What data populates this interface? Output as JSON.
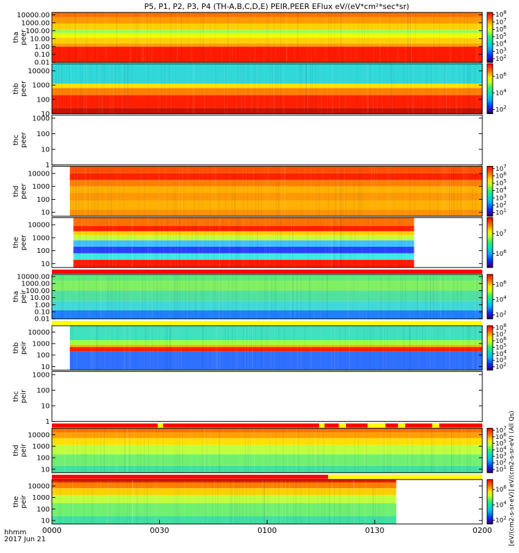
{
  "chart_data": {
    "type": "heatmap",
    "title": "P5, P1, P2, P3, P4 (TH-A,B,C,D,E) PEIR,PEER EFlux eV/(eV*cm²*sec*sr)",
    "x_axis_label_lines": [
      "hhmm",
      "2017 Jun 21"
    ],
    "x_ticks": [
      "0000",
      "0030",
      "0100",
      "0130",
      "0200"
    ],
    "x_range_minutes": [
      0,
      120
    ],
    "colorbar_label": "[eV/(cm2-s-sr-eV)] eV/(cm2-s-sr-eV) (All Qs)",
    "panels": [
      {
        "name": "tha peer",
        "ylabel": [
          "tha",
          "peer"
        ],
        "yticks": [
          "10000.00",
          "1000.00",
          "100.00",
          "10.00",
          "1.00",
          "0.10",
          "0.01"
        ],
        "y_log_range": [
          -2,
          4.3
        ],
        "data_coverage_min": [
          0,
          120
        ],
        "bands": [
          [
            -2,
            0,
            "#ff1a00"
          ],
          [
            0,
            0.4,
            "#ffa000"
          ],
          [
            0.4,
            1.1,
            "#ffd000"
          ],
          [
            1.1,
            1.7,
            "#f0ff00"
          ],
          [
            1.7,
            2.2,
            "#a0ff40"
          ],
          [
            2.2,
            2.9,
            "#ffd000"
          ],
          [
            2.9,
            3.7,
            "#ff9a00"
          ],
          [
            3.7,
            4.3,
            "#ff7000"
          ]
        ],
        "cbar_ticks": [
          "10^8",
          "10^7",
          "10^6",
          "10^5",
          "10^4",
          "10^3",
          "10^2"
        ],
        "cbar_range": [
          1.5,
          8.3
        ],
        "has_flag": false
      },
      {
        "name": "thb peer",
        "ylabel": [
          "thb",
          "peer"
        ],
        "yticks": [
          "10000",
          "1000",
          "100",
          "10"
        ],
        "y_log_range": [
          1,
          4.5
        ],
        "data_coverage_min": [
          0,
          120
        ],
        "bands": [
          [
            1,
            1.4,
            "#c81000"
          ],
          [
            1.4,
            2.3,
            "#ff2000"
          ],
          [
            2.3,
            2.8,
            "#ff8000"
          ],
          [
            2.8,
            3.1,
            "#ffe000"
          ],
          [
            3.1,
            4.5,
            "#30d8d8"
          ]
        ],
        "cbar_ticks": [
          "10^6",
          "10^4",
          "10^2"
        ],
        "cbar_range": [
          1.5,
          7.5
        ],
        "has_flag": false
      },
      {
        "name": "thc peer",
        "ylabel": [
          "thc",
          "peer"
        ],
        "yticks": [
          "1000",
          "100",
          "10",
          "1"
        ],
        "y_log_range": [
          0,
          3.2
        ],
        "data_coverage_min": null,
        "bands": [],
        "cbar_ticks": [],
        "cbar_range": null,
        "has_flag": false
      },
      {
        "name": "thd peer",
        "ylabel": [
          "thd",
          "peer"
        ],
        "yticks": [
          "10000",
          "1000",
          "100",
          "10"
        ],
        "y_log_range": [
          0.7,
          4.55
        ],
        "data_coverage_min": [
          5,
          120
        ],
        "bands": [
          [
            0.7,
            1.2,
            "#ff9000"
          ],
          [
            1.2,
            1.9,
            "#ffb000"
          ],
          [
            1.9,
            2.5,
            "#ff9800"
          ],
          [
            2.5,
            3.0,
            "#ffb000"
          ],
          [
            3.0,
            3.5,
            "#ff8000"
          ],
          [
            3.5,
            4.0,
            "#ff2000"
          ],
          [
            4.0,
            4.55,
            "#ff5000"
          ]
        ],
        "cbar_ticks": [
          "10^7",
          "10^6",
          "10^5",
          "10^4",
          "10^3",
          "10^2",
          "10^1"
        ],
        "cbar_range": [
          0.5,
          7.3
        ],
        "has_flag": false
      },
      {
        "name": "the peer",
        "ylabel": [
          "the",
          "peer"
        ],
        "yticks": [
          "10000",
          "1000",
          "100",
          "10"
        ],
        "y_log_range": [
          0.7,
          4.55
        ],
        "data_coverage_min": [
          6,
          101
        ],
        "bands": [
          [
            0.7,
            1.3,
            "#ff1a00"
          ],
          [
            1.3,
            1.8,
            "#40e8e8"
          ],
          [
            1.8,
            2.3,
            "#2a40ff"
          ],
          [
            2.3,
            2.8,
            "#40c0ff"
          ],
          [
            2.8,
            3.2,
            "#c0ff40"
          ],
          [
            3.2,
            3.5,
            "#ffd000"
          ],
          [
            3.5,
            3.9,
            "#ff2000"
          ],
          [
            3.9,
            4.55,
            "#ff7000"
          ]
        ],
        "cbar_ticks": [
          "10^7",
          "10^6"
        ],
        "cbar_range": [
          5.3,
          7.8
        ],
        "has_flag": false
      },
      {
        "name": "tha peir",
        "ylabel": [
          "tha",
          "peir"
        ],
        "yticks": [
          "10000.00",
          "1000.00",
          "100.00",
          "10.00",
          "1.00",
          "0.10",
          "0.01"
        ],
        "y_log_range": [
          -2,
          4.3
        ],
        "data_coverage_min": [
          0,
          120
        ],
        "bands": [
          [
            -2,
            -0.8,
            "#2080ff"
          ],
          [
            -0.8,
            0.5,
            "#40d8d8"
          ],
          [
            0.5,
            2.0,
            "#50e0a0"
          ],
          [
            2.0,
            3.4,
            "#80f060"
          ],
          [
            3.4,
            4.3,
            "#60e880"
          ]
        ],
        "cbar_ticks": [
          "10^6",
          "10^4",
          "10^2"
        ],
        "cbar_range": [
          1.5,
          7.3
        ],
        "has_flag": true,
        "flag_segments": [
          [
            0,
            120,
            "#ff0000"
          ]
        ]
      },
      {
        "name": "thb peir",
        "ylabel": [
          "thb",
          "peir"
        ],
        "yticks": [
          "10000",
          "1000",
          "100",
          "10"
        ],
        "y_log_range": [
          0.7,
          4.55
        ],
        "data_coverage_min": [
          5,
          120
        ],
        "bands": [
          [
            0.7,
            2.3,
            "#3070ff"
          ],
          [
            2.3,
            2.7,
            "#ff2000"
          ],
          [
            2.7,
            2.9,
            "#ffb000"
          ],
          [
            2.9,
            3.3,
            "#a0ff40"
          ],
          [
            3.3,
            4.55,
            "#40e0c0"
          ]
        ],
        "cbar_ticks": [
          "10^8",
          "10^7",
          "10^6",
          "10^5",
          "10^4",
          "10^3",
          "10^2"
        ],
        "cbar_range": [
          1.5,
          8.3
        ],
        "has_flag": true,
        "flag_segments": [
          [
            0,
            120,
            "#ffff00"
          ]
        ]
      },
      {
        "name": "thc peir",
        "ylabel": [
          "thc",
          "peir"
        ],
        "yticks": [
          "1000",
          "100",
          "10",
          "1"
        ],
        "y_log_range": [
          0,
          3.2
        ],
        "data_coverage_min": null,
        "bands": [],
        "cbar_ticks": [],
        "cbar_range": null,
        "has_flag": false
      },
      {
        "name": "thd peir",
        "ylabel": [
          "thd",
          "peir"
        ],
        "yticks": [
          "10000",
          "1000",
          "100",
          "10"
        ],
        "y_log_range": [
          0.7,
          4.55
        ],
        "data_coverage_min": [
          0,
          120
        ],
        "bands": [
          [
            0.7,
            1.3,
            "#40e0a0"
          ],
          [
            1.3,
            2.3,
            "#70f070"
          ],
          [
            2.3,
            3.1,
            "#c0ff40"
          ],
          [
            3.1,
            3.7,
            "#ffe000"
          ],
          [
            3.7,
            4.2,
            "#ffa000"
          ],
          [
            4.2,
            4.55,
            "#ff7000"
          ]
        ],
        "cbar_ticks": [
          "10^7",
          "10^6",
          "10^5",
          "10^4",
          "10^3",
          "10^2",
          "10^1"
        ],
        "cbar_range": [
          0.5,
          7.3
        ],
        "has_flag": true,
        "flag_segments": [
          [
            0,
            120,
            "#ff0000"
          ],
          [
            29.5,
            31,
            "#ffff00"
          ],
          [
            74.5,
            76,
            "#ffff00"
          ],
          [
            80,
            82,
            "#ffff00"
          ],
          [
            88,
            93,
            "#ffff00"
          ],
          [
            96.5,
            98.5,
            "#ffff00"
          ],
          [
            106,
            108,
            "#ffff00"
          ]
        ]
      },
      {
        "name": "the peir",
        "ylabel": [
          "the",
          "peir"
        ],
        "yticks": [
          "10000",
          "1000",
          "100",
          "10"
        ],
        "y_log_range": [
          0.7,
          4.55
        ],
        "data_coverage_min": [
          0,
          96
        ],
        "bands": [
          [
            0.7,
            1.4,
            "#40e0a0"
          ],
          [
            1.4,
            2.5,
            "#70f070"
          ],
          [
            2.5,
            3.2,
            "#c0ff40"
          ],
          [
            3.2,
            3.8,
            "#ffd000"
          ],
          [
            3.8,
            4.3,
            "#ff8000"
          ],
          [
            4.3,
            4.55,
            "#e02000"
          ]
        ],
        "cbar_ticks": [
          "10^6",
          "10^4",
          "10^2"
        ],
        "cbar_range": [
          1.5,
          7.3
        ],
        "has_flag": true,
        "flag_segments": [
          [
            0,
            120,
            "#ff0000"
          ],
          [
            77,
            120,
            "#ffff00"
          ]
        ]
      }
    ]
  }
}
